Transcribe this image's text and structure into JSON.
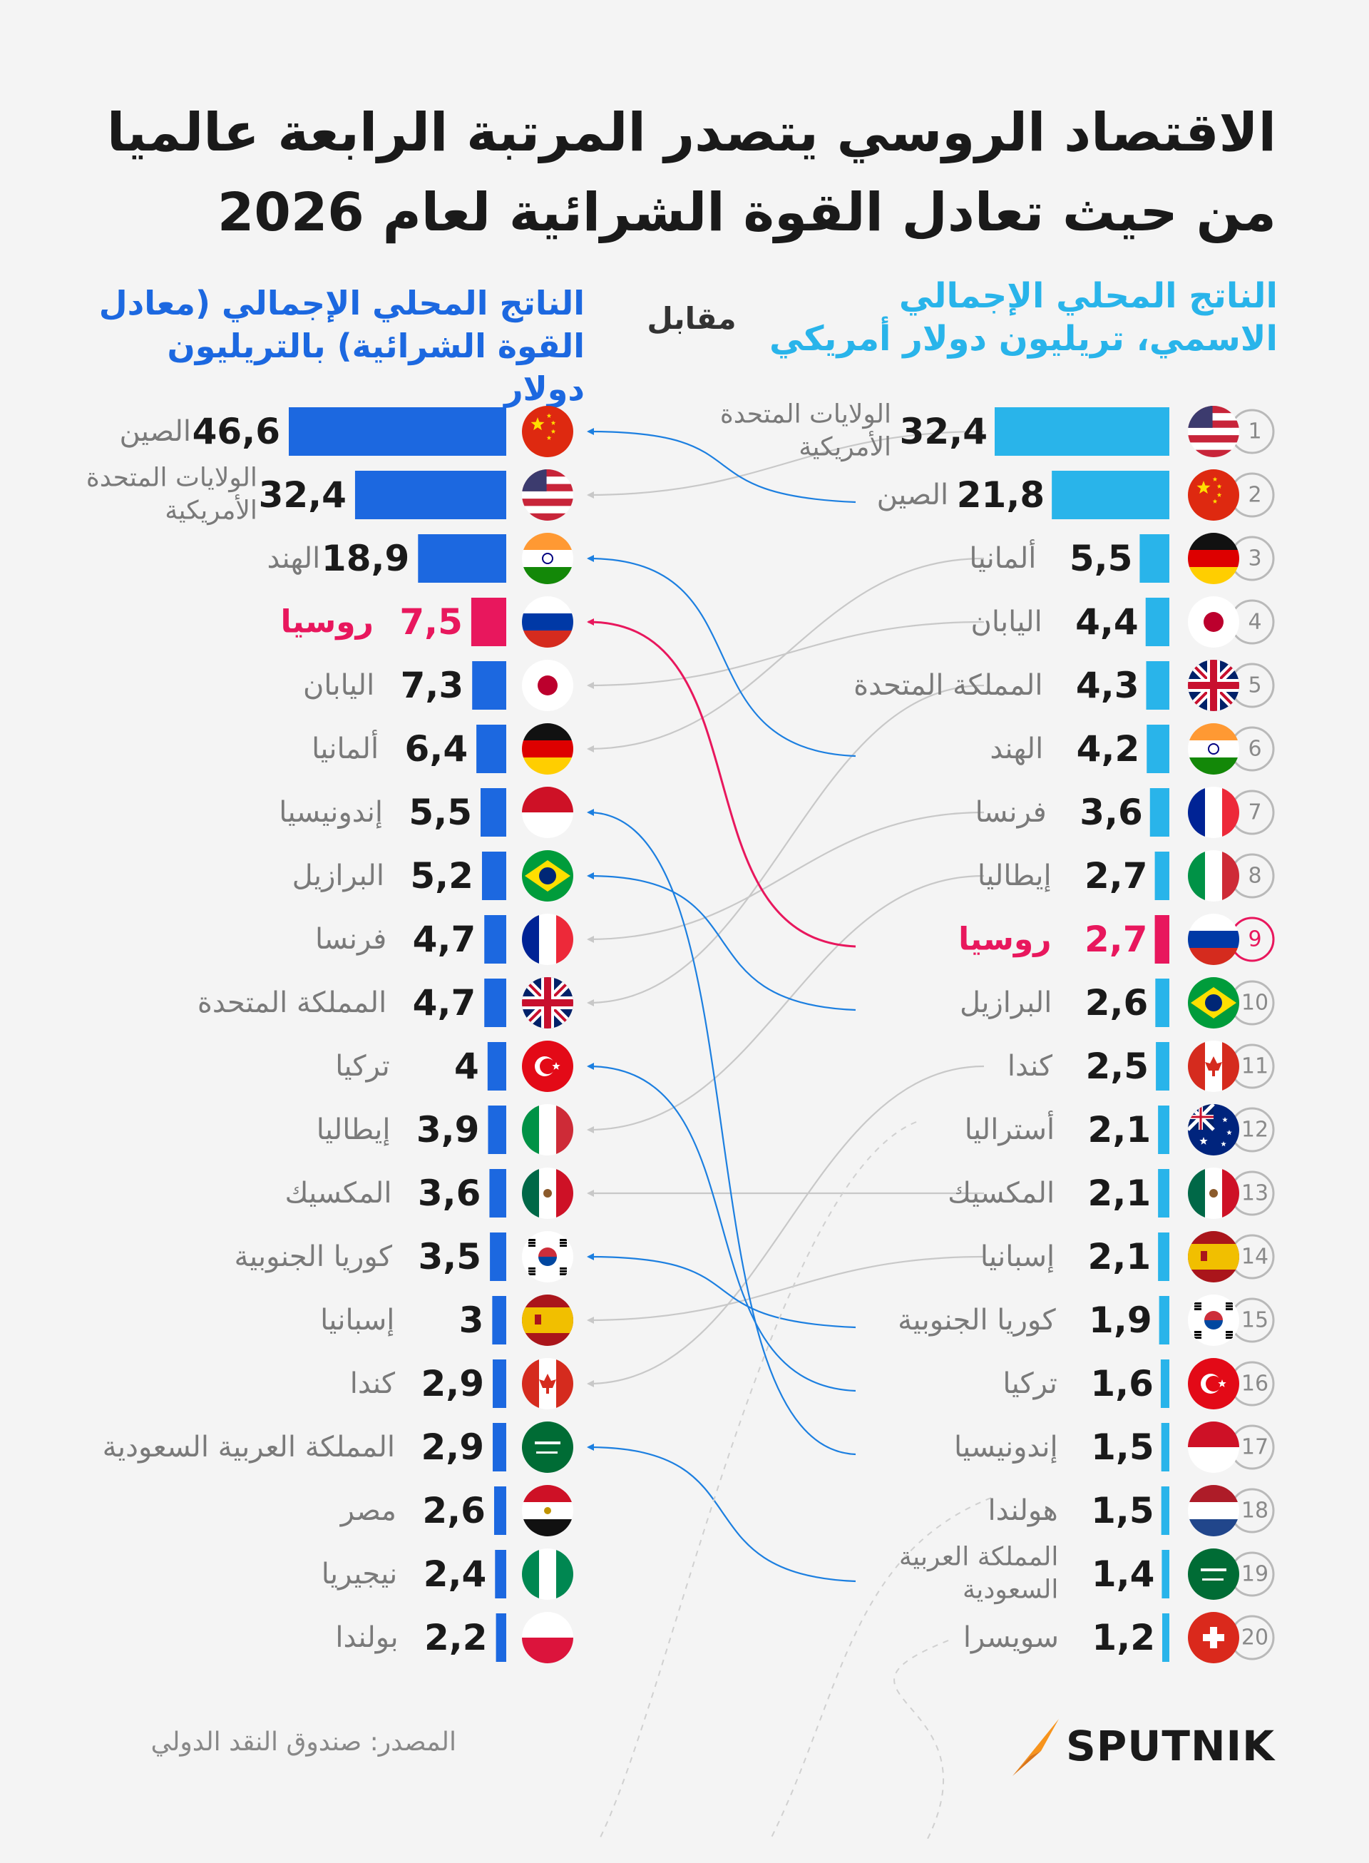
{
  "title": "الاقتصاد الروسي يتصدر المرتبة الرابعة عالميا من حيث تعادل القوة الشرائية لعام 2026",
  "header_nominal": "الناتج المحلي الإجمالي الاسمي، تريليون دولار أمريكي",
  "header_ppp": "الناتج المحلي الإجمالي (معادل القوة الشرائية) بالتريليون دولار",
  "header_vs": "مقابل",
  "source": "المصدر: صندوق النقد الدولي",
  "logo": "SPUTNIK",
  "colors": {
    "nominal": "#29b4ea",
    "ppp": "#1c68e0",
    "russia": "#e8175d",
    "connector": "#c8c8c8",
    "text": "#1a1a1a",
    "label": "#7a7a7a",
    "logo_accent": "#f7941d"
  },
  "chart_data": [
    {
      "type": "bar",
      "title": "الناتج المحلي الإجمالي الاسمي، تريليون دولار أمريكي",
      "categories": [
        "الولايات المتحدة الأمريكية",
        "الصين",
        "ألمانيا",
        "اليابان",
        "المملكة المتحدة",
        "الهند",
        "فرنسا",
        "إيطاليا",
        "روسيا",
        "البرازيل",
        "كندا",
        "أستراليا",
        "المكسيك",
        "إسبانيا",
        "كوريا الجنوبية",
        "تركيا",
        "إندونيسيا",
        "هولندا",
        "المملكة العربية السعودية",
        "سويسرا"
      ],
      "ranks": [
        "1",
        "2",
        "3",
        "4",
        "5",
        "6",
        "7",
        "8",
        "9",
        "10",
        "11",
        "12",
        "13",
        "14",
        "15",
        "16",
        "17",
        "18",
        "19",
        "20"
      ],
      "values": [
        32.4,
        21.8,
        5.5,
        4.4,
        4.3,
        4.2,
        3.6,
        2.7,
        2.7,
        2.6,
        2.5,
        2.1,
        2.1,
        2.1,
        1.9,
        1.6,
        1.5,
        1.5,
        1.4,
        1.2
      ],
      "value_labels": [
        "32,4",
        "21,8",
        "5,5",
        "4,4",
        "4,3",
        "4,2",
        "3,6",
        "2,7",
        "2,7",
        "2,6",
        "2,5",
        "2,1",
        "2,1",
        "2,1",
        "1,9",
        "1,6",
        "1,5",
        "1,5",
        "1,4",
        "1,2"
      ],
      "flags": [
        "us",
        "cn",
        "de",
        "jp",
        "gb",
        "in",
        "fr",
        "it",
        "ru",
        "br",
        "ca",
        "au",
        "mx",
        "es",
        "kr",
        "tr",
        "id",
        "nl",
        "sa",
        "ch"
      ],
      "highlight": "روسيا"
    },
    {
      "type": "bar",
      "title": "الناتج المحلي الإجمالي (معادل القوة الشرائية) بالتريليون دولار",
      "categories": [
        "الصين",
        "الولايات المتحدة الأمريكية",
        "الهند",
        "روسيا",
        "اليابان",
        "ألمانيا",
        "إندونيسيا",
        "البرازيل",
        "فرنسا",
        "المملكة المتحدة",
        "تركيا",
        "إيطاليا",
        "المكسيك",
        "كوريا الجنوبية",
        "إسبانيا",
        "كندا",
        "المملكة العربية السعودية",
        "مصر",
        "نيجيريا",
        "بولندا"
      ],
      "values": [
        46.6,
        32.4,
        18.9,
        7.5,
        7.3,
        6.4,
        5.5,
        5.2,
        4.7,
        4.7,
        4,
        3.9,
        3.6,
        3.5,
        3,
        2.9,
        2.9,
        2.6,
        2.4,
        2.2
      ],
      "value_labels": [
        "46,6",
        "32,4",
        "18,9",
        "7,5",
        "7,3",
        "6,4",
        "5,5",
        "5,2",
        "4,7",
        "4,7",
        "4",
        "3,9",
        "3,6",
        "3,5",
        "3",
        "2,9",
        "2,9",
        "2,6",
        "2,4",
        "2,2"
      ],
      "flags": [
        "cn",
        "us",
        "in",
        "ru",
        "jp",
        "de",
        "id",
        "br",
        "fr",
        "gb",
        "tr",
        "it",
        "mx",
        "kr",
        "es",
        "ca",
        "sa",
        "eg",
        "ng",
        "pl"
      ],
      "highlight": "روسيا"
    }
  ]
}
